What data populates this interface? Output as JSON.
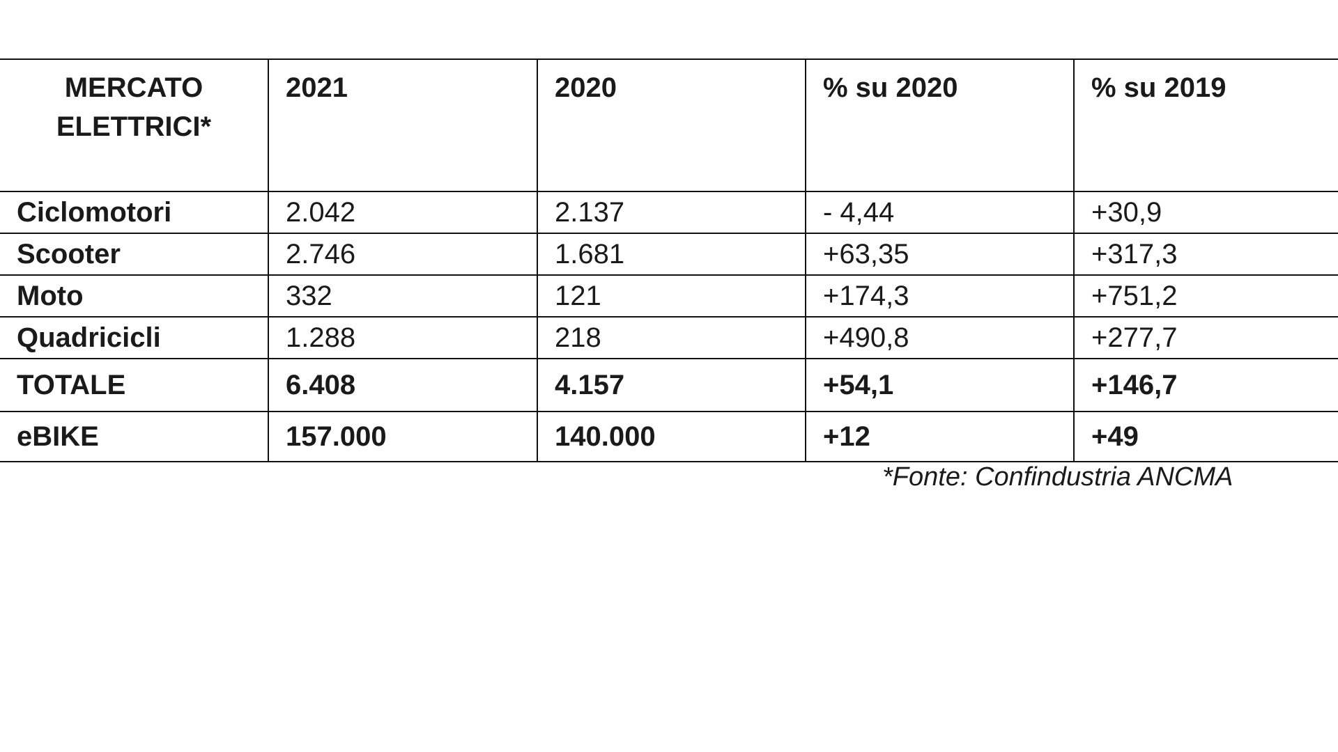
{
  "table": {
    "header": [
      "MERCATO ELETTRICI*",
      "2021",
      "2020",
      "% su 2020",
      "% su 2019"
    ],
    "rows": [
      {
        "label": "Ciclomotori",
        "values": [
          "2.042",
          "2.137",
          "- 4,44",
          "+30,9"
        ]
      },
      {
        "label": "Scooter",
        "values": [
          "2.746",
          "1.681",
          "+63,35",
          "+317,3"
        ]
      },
      {
        "label": "Moto",
        "values": [
          "332",
          "121",
          "+174,3",
          "+751,2"
        ]
      },
      {
        "label": "Quadricicli",
        "values": [
          "1.288",
          "218",
          "+490,8",
          "+277,7"
        ]
      }
    ],
    "total": {
      "label": "TOTALE",
      "values": [
        "6.408",
        "4.157",
        "+54,1",
        "+146,7"
      ]
    },
    "ebike": {
      "label": "eBIKE",
      "values": [
        "157.000",
        "140.000",
        "+12",
        "+49"
      ]
    }
  },
  "source_note": "*Fonte: Confindustria ANCMA"
}
